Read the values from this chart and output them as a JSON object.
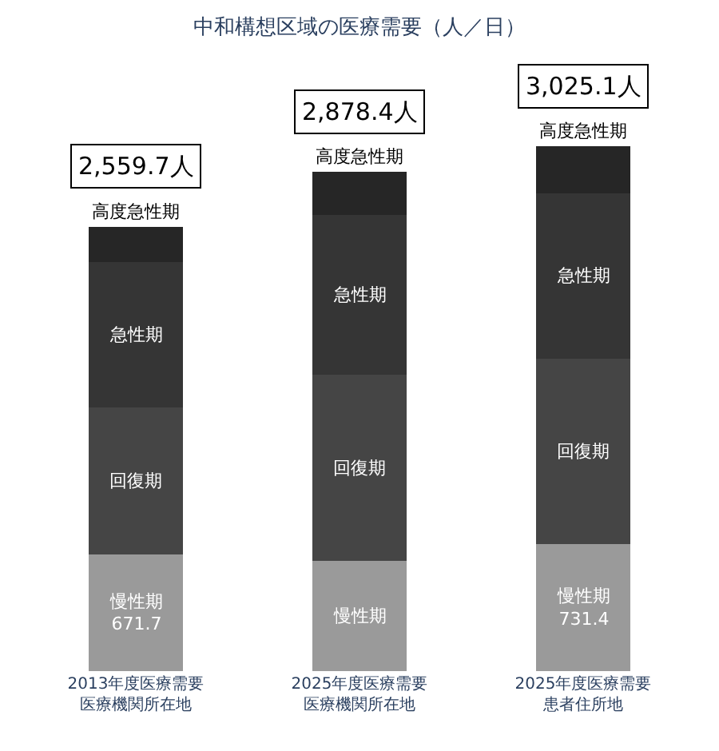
{
  "chart_data": {
    "type": "bar",
    "stacked": true,
    "title": "中和構想区域の医療需要（人／日）",
    "categories": [
      "2013年度医療需要医療機関所在地",
      "2025年度医療需要医療機関所在地",
      "2025年度医療需要患者住所地"
    ],
    "series": [
      {
        "name": "慢性期",
        "color": "#9a9a9a",
        "values": [
          671.7,
          635.4,
          731.4
        ],
        "value_labels": [
          "671.7",
          null,
          "731.4"
        ]
      },
      {
        "name": "回復期",
        "color": "#454545",
        "values": [
          847,
          1072,
          1071.4
        ]
      },
      {
        "name": "急性期",
        "color": "#353535",
        "values": [
          841,
          923,
          952
        ]
      },
      {
        "name": "高度急性期",
        "color": "#262626",
        "values": [
          200,
          248,
          270.3
        ]
      }
    ],
    "totals": [
      "2,559.7人",
      "2,878.4人",
      "3,025.1人"
    ],
    "legend": false
  }
}
